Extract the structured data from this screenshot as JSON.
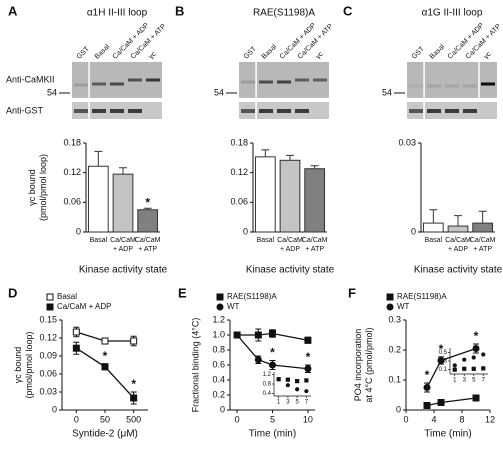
{
  "chart_data": [
    {
      "type": "bar",
      "panel": "A",
      "title": "α1H II-III loop",
      "lanes": [
        "GST",
        "Basal",
        "Ca/CaM + ADP",
        "Ca/CaM + ATP",
        "γc"
      ],
      "blot_labels": [
        "Anti-CaMKII",
        "Anti-GST"
      ],
      "size_marker": 54,
      "ylabel": [
        "γc bound",
        "(pmol/pmol loop)"
      ],
      "xlabel": "Kinase activity state",
      "categories": [
        [
          "Basal"
        ],
        [
          "Ca/CaM",
          "+ ADP"
        ],
        [
          "Ca/CaM",
          "+ ATP"
        ]
      ],
      "values": [
        0.133,
        0.117,
        0.045
      ],
      "errors": [
        0.03,
        0.013,
        0.003
      ],
      "colors": [
        "#ffffff",
        "#c4c4c4",
        "#808080"
      ],
      "value_annotations": [
        null,
        null,
        "*"
      ],
      "ylim": [
        0,
        0.18
      ],
      "yticks": [
        0,
        0.06,
        0.12,
        0.18
      ]
    },
    {
      "type": "bar",
      "panel": "B",
      "title": "RAE(S1198)A",
      "lanes": [
        "GST",
        "Basal",
        "Ca/CaM + ADP",
        "Ca/CaM + ATP",
        "γc"
      ],
      "size_marker": 54,
      "xlabel": "Kinase activity state",
      "categories": [
        [
          "Basal"
        ],
        [
          "Ca/CaM",
          "+ ADP"
        ],
        [
          "Ca/CaM",
          "+ ATP"
        ]
      ],
      "values": [
        0.152,
        0.145,
        0.128
      ],
      "errors": [
        0.014,
        0.01,
        0.006
      ],
      "colors": [
        "#ffffff",
        "#c4c4c4",
        "#808080"
      ],
      "ylim": [
        0,
        0.18
      ],
      "yticks": [
        0,
        0.06,
        0.12,
        0.18
      ]
    },
    {
      "type": "bar",
      "panel": "C",
      "title": "α1G II-III loop",
      "lanes": [
        "GST",
        "Basal",
        "Ca/CaM + ADP",
        "Ca/CaM + ATP",
        "γc"
      ],
      "size_marker": 54,
      "xlabel": "Kinase activity state",
      "categories": [
        [
          "Basal"
        ],
        [
          "Ca/CaM",
          "+ ADP"
        ],
        [
          "Ca/CaM",
          "+ ATP"
        ]
      ],
      "values": [
        0.003,
        0.002,
        0.003
      ],
      "errors": [
        0.0045,
        0.0035,
        0.004
      ],
      "colors": [
        "#ffffff",
        "#c4c4c4",
        "#808080"
      ],
      "ylim": [
        0,
        0.03
      ],
      "yticks": [
        0,
        0.03
      ]
    },
    {
      "type": "line",
      "panel": "D",
      "ylabel": [
        "γc bound",
        "(pmol/pmol loop)"
      ],
      "xlabel": "Syntide-2 (μM)",
      "categories": [
        "0",
        "50",
        "500"
      ],
      "series": [
        {
          "name": "Basal",
          "marker": "square-open",
          "color": "#111111",
          "values": [
            0.13,
            0.115,
            0.115
          ],
          "errors": [
            0.008,
            0.005,
            0.008
          ]
        },
        {
          "name": "Ca/CaM + ADP",
          "marker": "square",
          "color": "#111111",
          "values": [
            0.103,
            0.072,
            0.02
          ],
          "errors": [
            0.01,
            0.005,
            0.01
          ],
          "annotations": [
            null,
            "*",
            "*"
          ]
        }
      ],
      "ylim": [
        0,
        0.15
      ],
      "yticks": [
        0,
        0.03,
        0.06,
        0.09,
        0.12,
        0.15
      ]
    },
    {
      "type": "line",
      "panel": "E",
      "ylabel": [
        "Fractional binding (4°C)"
      ],
      "xlabel": "Time (min)",
      "x": [
        0,
        3,
        5,
        10
      ],
      "series": [
        {
          "name": "RAE(S1198)A",
          "marker": "square",
          "color": "#111111",
          "values": [
            1.0,
            1.0,
            1.02,
            0.93
          ],
          "errors": [
            0.03,
            0.08,
            0.05,
            0.04
          ]
        },
        {
          "name": "WT",
          "marker": "circle",
          "color": "#111111",
          "values": [
            1.0,
            0.67,
            0.6,
            0.55
          ],
          "errors": [
            0.03,
            0.05,
            0.06,
            0.05
          ],
          "annotations": [
            null,
            null,
            "*",
            "*"
          ]
        }
      ],
      "xlim": [
        -1,
        11
      ],
      "xticks": [
        0,
        5,
        10
      ],
      "ylim": [
        0,
        1.2
      ],
      "yticks": [
        0,
        0.2,
        0.4,
        0.6,
        {
          "value": 0.8,
          "label": "0.8"
        },
        {
          "value": 1,
          "label": "1.0"
        },
        1.2
      ],
      "inset": {
        "x": [
          1,
          3,
          5,
          7
        ],
        "xlim": [
          0,
          8
        ],
        "xticks": [
          1,
          3,
          5,
          7
        ],
        "ylim": [
          0.3,
          1.3
        ],
        "yticks": [
          0.4,
          0.8,
          1.2
        ],
        "series": [
          {
            "marker": "square",
            "values": [
              1.0,
              0.98,
              0.92,
              0.95
            ]
          },
          {
            "marker": "circle",
            "values": [
              1.0,
              0.75,
              0.58,
              0.5
            ]
          }
        ]
      }
    },
    {
      "type": "line",
      "panel": "F",
      "ylabel": [
        "PO4 incorporation",
        "at 4°C (pmol/pmol)"
      ],
      "xlabel": "Time (min)",
      "x": [
        3,
        5,
        10
      ],
      "series": [
        {
          "name": "RAE(S1198)A",
          "marker": "square",
          "color": "#111111",
          "values": [
            0.015,
            0.025,
            0.04
          ],
          "errors": [
            0.004,
            0.004,
            0.004
          ]
        },
        {
          "name": "WT",
          "marker": "circle",
          "color": "#111111",
          "values": [
            0.075,
            0.165,
            0.205
          ],
          "errors": [
            0.015,
            0.012,
            0.015
          ],
          "annotations": [
            "*",
            "*",
            "*"
          ]
        }
      ],
      "xlim": [
        0,
        12
      ],
      "xticks": [
        0,
        4,
        8,
        12
      ],
      "ylim": [
        0,
        0.3
      ],
      "yticks": [
        0,
        0.1,
        0.2,
        0.3
      ],
      "inset": {
        "x": [
          1,
          3,
          5,
          7
        ],
        "xlim": [
          0,
          8
        ],
        "xticks": [
          1,
          3,
          5,
          7
        ],
        "ylim": [
          0,
          0.6
        ],
        "yticks": [
          0.1,
          0.3,
          0.5
        ],
        "series": [
          {
            "marker": "square",
            "values": [
              0.1,
              0.12,
              0.12,
              0.13
            ]
          },
          {
            "marker": "circle",
            "values": [
              0.2,
              0.33,
              0.38,
              0.45
            ]
          }
        ]
      }
    }
  ]
}
